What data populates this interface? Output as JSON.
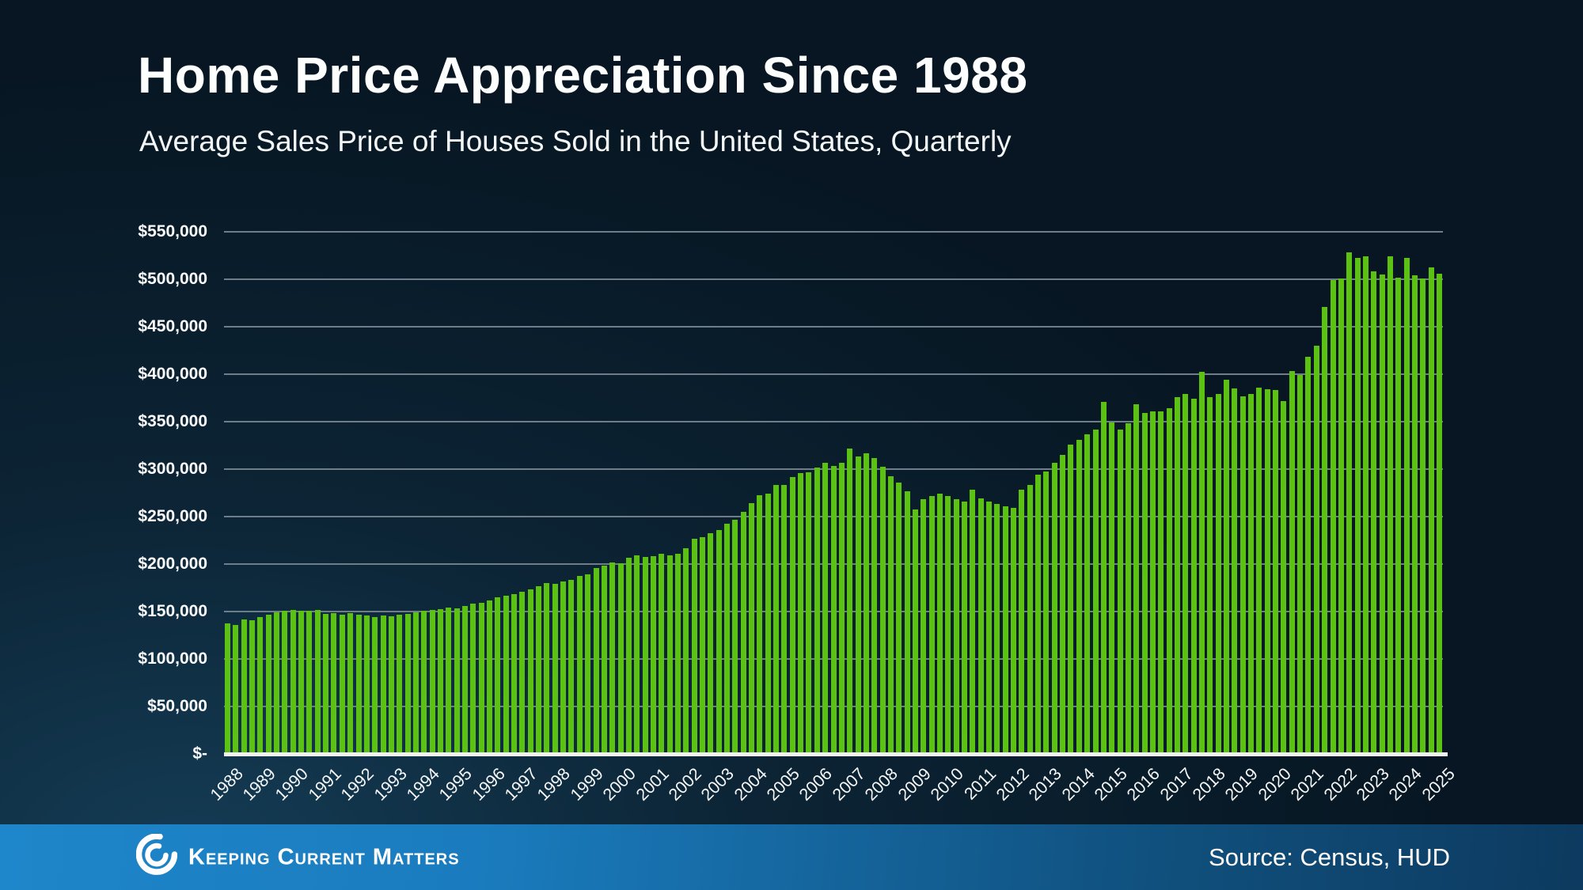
{
  "title": "Home Price Appreciation Since 1988",
  "subtitle": "Average Sales Price of Houses Sold in the United States, Quarterly",
  "footer": {
    "brand": "Keeping Current Matters",
    "source": "Source: Census, HUD",
    "logo_icon": "kcm-swirl-icon"
  },
  "colors": {
    "bar": "#5bc113",
    "gridline": "#6f7d88",
    "axis_line": "#f1f3f0",
    "background": "#0c2435",
    "footer_blue_left": "#1e86ca",
    "footer_blue_right": "#0d3a5f",
    "text": "#ffffff"
  },
  "chart_data": {
    "type": "bar",
    "title": "Home Price Appreciation Since 1988",
    "subtitle": "Average Sales Price of Houses Sold in the United States, Quarterly",
    "unit": "USD",
    "frequency": "quarterly",
    "start": "1988-Q1",
    "end": "2025-Q1",
    "ylim": [
      0,
      550000
    ],
    "grid": true,
    "legend": "none",
    "y_ticks": [
      "$-",
      "$50,000",
      "$100,000",
      "$150,000",
      "$200,000",
      "$250,000",
      "$300,000",
      "$350,000",
      "$400,000",
      "$450,000",
      "$500,000",
      "$550,000"
    ],
    "x_labels": [
      "1988",
      "1989",
      "1990",
      "1991",
      "1992",
      "1993",
      "1994",
      "1995",
      "1996",
      "1997",
      "1998",
      "1999",
      "2000",
      "2001",
      "2002",
      "2003",
      "2004",
      "2005",
      "2006",
      "2007",
      "2008",
      "2009",
      "2010",
      "2011",
      "2012",
      "2013",
      "2014",
      "2015",
      "2016",
      "2017",
      "2018",
      "2019",
      "2020",
      "2021",
      "2022",
      "2023",
      "2024",
      "2025"
    ],
    "series": [
      {
        "name": "Average Sales Price of Houses Sold",
        "values": [
          137500,
          135500,
          141500,
          141000,
          144500,
          147000,
          149500,
          151000,
          152000,
          151000,
          151000,
          151500,
          147500,
          148500,
          147000,
          148000,
          146500,
          145500,
          144500,
          146000,
          145000,
          147000,
          147500,
          149500,
          150500,
          151500,
          152500,
          154000,
          153500,
          156000,
          158500,
          159500,
          162000,
          165000,
          166500,
          168000,
          170500,
          173500,
          177000,
          180000,
          179000,
          182000,
          183500,
          187500,
          189500,
          195500,
          198500,
          201500,
          201000,
          206500,
          209500,
          207500,
          208000,
          211000,
          209500,
          211000,
          217000,
          226500,
          228000,
          232500,
          236000,
          242500,
          246500,
          255000,
          264500,
          272500,
          274500,
          283500,
          283500,
          291500,
          295500,
          297000,
          302000,
          306500,
          303000,
          307000,
          322000,
          313500,
          316500,
          311500,
          302500,
          292500,
          286000,
          277000,
          257500,
          268500,
          272000,
          274000,
          272000,
          268500,
          266000,
          278000,
          269500,
          265500,
          263500,
          260500,
          259000,
          278000,
          283500,
          294500,
          297500,
          306500,
          315000,
          325500,
          330500,
          337000,
          341500,
          371000,
          349500,
          341500,
          348500,
          368500,
          359000,
          360500,
          361000,
          364500,
          375500,
          379000,
          374000,
          402500,
          376000,
          379000,
          394500,
          385000,
          377000,
          379500,
          385500,
          384500,
          383000,
          371500,
          403000,
          399000,
          418500,
          430000,
          470500,
          499500,
          501000,
          528000,
          522500,
          524000,
          508000,
          505000,
          524500,
          501500,
          522500,
          504500,
          501000,
          512500,
          506000
        ]
      }
    ]
  }
}
